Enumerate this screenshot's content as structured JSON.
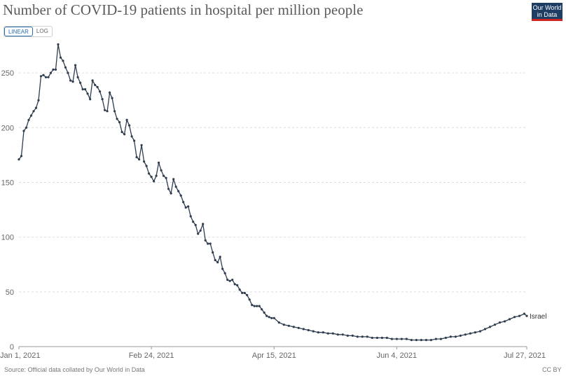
{
  "header": {
    "title": "Number of COVID-19 patients in hospital per million people",
    "logo_line1": "Our World",
    "logo_line2": "in Data"
  },
  "controls": {
    "linear_label": "LINEAR",
    "log_label": "LOG",
    "selected": "LINEAR"
  },
  "footer": {
    "source": "Source: Official data collated by Our World in Data",
    "license": "CC BY"
  },
  "colors": {
    "line": "#2f3d4f",
    "grid": "#dddddd",
    "logo_bg": "#1d3d63",
    "logo_accent": "#ce261e",
    "active_toggle": "#2a6eb0"
  },
  "chart_data": {
    "type": "line",
    "title": "Number of COVID-19 patients in hospital per million people",
    "xlabel": "",
    "ylabel": "",
    "ylim": [
      0,
      275
    ],
    "yticks": [
      0,
      50,
      100,
      150,
      200,
      250
    ],
    "xticks": [
      {
        "label": "Jan 1, 2021",
        "day": 0
      },
      {
        "label": "Feb 24, 2021",
        "day": 54
      },
      {
        "label": "Apr 15, 2021",
        "day": 104
      },
      {
        "label": "Jun 4, 2021",
        "day": 154
      },
      {
        "label": "Jul 27, 2021",
        "day": 207
      }
    ],
    "grid": "horizontal dashed",
    "legend": "end-of-line label",
    "series": [
      {
        "name": "Israel",
        "x": [
          0,
          1,
          2,
          3,
          4,
          5,
          6,
          7,
          8,
          9,
          10,
          11,
          12,
          13,
          14,
          15,
          16,
          17,
          18,
          19,
          20,
          21,
          22,
          23,
          24,
          25,
          26,
          27,
          28,
          29,
          30,
          31,
          32,
          33,
          34,
          35,
          36,
          37,
          38,
          39,
          40,
          41,
          42,
          43,
          44,
          45,
          46,
          47,
          48,
          49,
          50,
          51,
          52,
          53,
          54,
          55,
          56,
          57,
          58,
          59,
          60,
          61,
          62,
          63,
          64,
          65,
          66,
          67,
          68,
          69,
          70,
          71,
          72,
          73,
          74,
          75,
          76,
          77,
          78,
          79,
          80,
          81,
          82,
          83,
          84,
          85,
          86,
          87,
          88,
          89,
          90,
          91,
          92,
          93,
          94,
          95,
          96,
          97,
          98,
          99,
          100,
          101,
          102,
          103,
          104,
          106,
          108,
          110,
          112,
          114,
          116,
          118,
          120,
          122,
          124,
          126,
          128,
          130,
          132,
          134,
          136,
          138,
          140,
          142,
          144,
          146,
          148,
          150,
          152,
          154,
          156,
          158,
          160,
          162,
          164,
          166,
          168,
          170,
          172,
          174,
          176,
          178,
          180,
          182,
          184,
          186,
          188,
          190,
          192,
          194,
          196,
          198,
          200,
          202,
          204,
          206,
          207
        ],
        "y": [
          171,
          174,
          197,
          200,
          207,
          211,
          215,
          218,
          225,
          247,
          248,
          246,
          246,
          250,
          253,
          253,
          276,
          264,
          261,
          255,
          250,
          243,
          242,
          257,
          246,
          241,
          235,
          235,
          231,
          226,
          243,
          239,
          237,
          233,
          226,
          216,
          215,
          232,
          227,
          215,
          208,
          205,
          196,
          194,
          207,
          202,
          192,
          188,
          173,
          171,
          184,
          169,
          165,
          158,
          155,
          151,
          156,
          168,
          161,
          156,
          154,
          144,
          140,
          153,
          146,
          142,
          138,
          132,
          127,
          128,
          119,
          114,
          111,
          103,
          106,
          112,
          97,
          94,
          94,
          86,
          79,
          77,
          82,
          71,
          67,
          61,
          60,
          61,
          57,
          56,
          52,
          49,
          49,
          47,
          43,
          38,
          37,
          37,
          37,
          34,
          31,
          28,
          27,
          26,
          26,
          22,
          20,
          19,
          18,
          17,
          16,
          15,
          14,
          13,
          13,
          12,
          12,
          11,
          11,
          10,
          10,
          9,
          9,
          9,
          8,
          8,
          8,
          8,
          7,
          7,
          7,
          7,
          6,
          6,
          6,
          6,
          6,
          7,
          7,
          8,
          9,
          9,
          10,
          11,
          12,
          13,
          14,
          16,
          18,
          20,
          22,
          23,
          25,
          27,
          28,
          30,
          28
        ]
      }
    ]
  }
}
